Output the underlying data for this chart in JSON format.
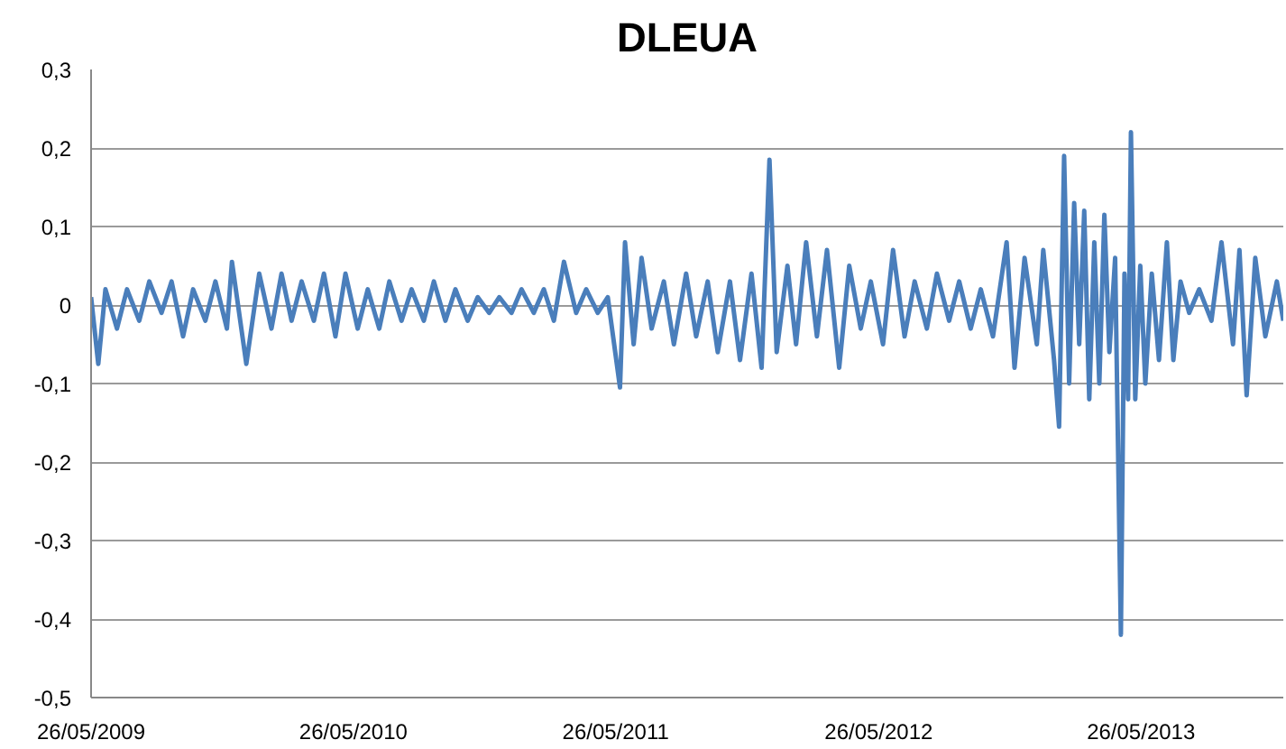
{
  "chart_data": {
    "type": "line",
    "title": "DLEUA",
    "x": [
      "2009-05-26",
      "2009-06-05",
      "2009-06-15",
      "2009-07-01",
      "2009-07-15",
      "2009-08-01",
      "2009-08-15",
      "2009-09-01",
      "2009-09-15",
      "2009-10-01",
      "2009-10-15",
      "2009-11-01",
      "2009-11-15",
      "2009-12-01",
      "2009-12-08",
      "2009-12-28",
      "2010-01-15",
      "2010-02-01",
      "2010-02-15",
      "2010-03-01",
      "2010-03-15",
      "2010-04-01",
      "2010-04-15",
      "2010-05-01",
      "2010-05-15",
      "2010-06-01",
      "2010-06-15",
      "2010-07-01",
      "2010-07-15",
      "2010-08-01",
      "2010-08-15",
      "2010-09-01",
      "2010-09-15",
      "2010-10-01",
      "2010-10-15",
      "2010-11-01",
      "2010-11-15",
      "2010-12-01",
      "2010-12-15",
      "2011-01-01",
      "2011-01-15",
      "2011-02-01",
      "2011-02-15",
      "2011-03-01",
      "2011-03-15",
      "2011-04-01",
      "2011-04-15",
      "2011-05-01",
      "2011-05-15",
      "2011-06-01",
      "2011-06-08",
      "2011-06-20",
      "2011-07-01",
      "2011-07-15",
      "2011-08-01",
      "2011-08-15",
      "2011-09-01",
      "2011-09-15",
      "2011-10-01",
      "2011-10-15",
      "2011-11-01",
      "2011-11-15",
      "2011-12-01",
      "2011-12-15",
      "2011-12-26",
      "2012-01-05",
      "2012-01-20",
      "2012-02-01",
      "2012-02-15",
      "2012-03-01",
      "2012-03-15",
      "2012-04-01",
      "2012-04-15",
      "2012-05-01",
      "2012-05-15",
      "2012-06-01",
      "2012-06-15",
      "2012-07-01",
      "2012-07-15",
      "2012-08-01",
      "2012-08-15",
      "2012-09-01",
      "2012-09-15",
      "2012-10-01",
      "2012-10-15",
      "2012-11-01",
      "2012-11-20",
      "2012-12-01",
      "2012-12-15",
      "2013-01-01",
      "2013-01-10",
      "2013-01-25",
      "2013-02-01",
      "2013-02-08",
      "2013-02-15",
      "2013-02-22",
      "2013-03-01",
      "2013-03-08",
      "2013-03-15",
      "2013-03-22",
      "2013-03-29",
      "2013-04-05",
      "2013-04-12",
      "2013-04-20",
      "2013-04-28",
      "2013-05-03",
      "2013-05-08",
      "2013-05-12",
      "2013-05-18",
      "2013-05-25",
      "2013-06-01",
      "2013-06-10",
      "2013-06-20",
      "2013-07-01",
      "2013-07-10",
      "2013-07-20",
      "2013-08-01",
      "2013-08-15",
      "2013-09-01",
      "2013-09-15",
      "2013-10-01",
      "2013-10-10",
      "2013-10-20",
      "2013-11-01",
      "2013-11-15",
      "2013-12-01",
      "2013-12-10"
    ],
    "series": [
      {
        "color": "#4a7ebb",
        "values": [
          0.01,
          -0.075,
          0.02,
          -0.03,
          0.02,
          -0.02,
          0.03,
          -0.01,
          0.03,
          -0.04,
          0.02,
          -0.02,
          0.03,
          -0.03,
          0.055,
          -0.075,
          0.04,
          -0.03,
          0.04,
          -0.02,
          0.03,
          -0.02,
          0.04,
          -0.04,
          0.04,
          -0.03,
          0.02,
          -0.03,
          0.03,
          -0.02,
          0.02,
          -0.02,
          0.03,
          -0.02,
          0.02,
          -0.02,
          0.01,
          -0.01,
          0.01,
          -0.01,
          0.02,
          -0.01,
          0.02,
          -0.02,
          0.055,
          -0.01,
          0.02,
          -0.01,
          0.01,
          -0.105,
          0.08,
          -0.05,
          0.06,
          -0.03,
          0.03,
          -0.05,
          0.04,
          -0.04,
          0.03,
          -0.06,
          0.03,
          -0.07,
          0.04,
          -0.08,
          0.185,
          -0.06,
          0.05,
          -0.05,
          0.08,
          -0.04,
          0.07,
          -0.08,
          0.05,
          -0.03,
          0.03,
          -0.05,
          0.07,
          -0.04,
          0.03,
          -0.03,
          0.04,
          -0.02,
          0.03,
          -0.03,
          0.02,
          -0.04,
          0.08,
          -0.08,
          0.06,
          -0.05,
          0.07,
          -0.07,
          -0.155,
          0.19,
          -0.1,
          0.13,
          -0.05,
          0.12,
          -0.12,
          0.08,
          -0.1,
          0.115,
          -0.06,
          0.06,
          -0.42,
          0.04,
          -0.12,
          0.22,
          -0.12,
          0.05,
          -0.1,
          0.04,
          -0.07,
          0.08,
          -0.07,
          0.03,
          -0.01,
          0.02,
          -0.02,
          0.08,
          -0.05,
          0.07,
          -0.115,
          0.06,
          -0.04,
          0.03,
          -0.02
        ]
      }
    ],
    "xlim": [
      "2009-05-26",
      "2013-12-10"
    ],
    "xticks": [
      {
        "value": "2009-05-26",
        "label": "26/05/2009"
      },
      {
        "value": "2010-05-26",
        "label": "26/05/2010"
      },
      {
        "value": "2011-05-26",
        "label": "26/05/2011"
      },
      {
        "value": "2012-05-26",
        "label": "26/05/2012"
      },
      {
        "value": "2013-05-26",
        "label": "26/05/2013"
      }
    ],
    "ylim": [
      -0.5,
      0.3
    ],
    "yticks": [
      {
        "value": -0.5,
        "label": "-0,5"
      },
      {
        "value": -0.4,
        "label": "-0,4"
      },
      {
        "value": -0.3,
        "label": "-0,3"
      },
      {
        "value": -0.2,
        "label": "-0,2"
      },
      {
        "value": -0.1,
        "label": "-0,1"
      },
      0,
      {
        "value": 0.1,
        "label": "0,1"
      },
      {
        "value": 0.2,
        "label": "0,2"
      },
      {
        "value": 0.3,
        "label": "0,3"
      }
    ],
    "grid": "y"
  }
}
